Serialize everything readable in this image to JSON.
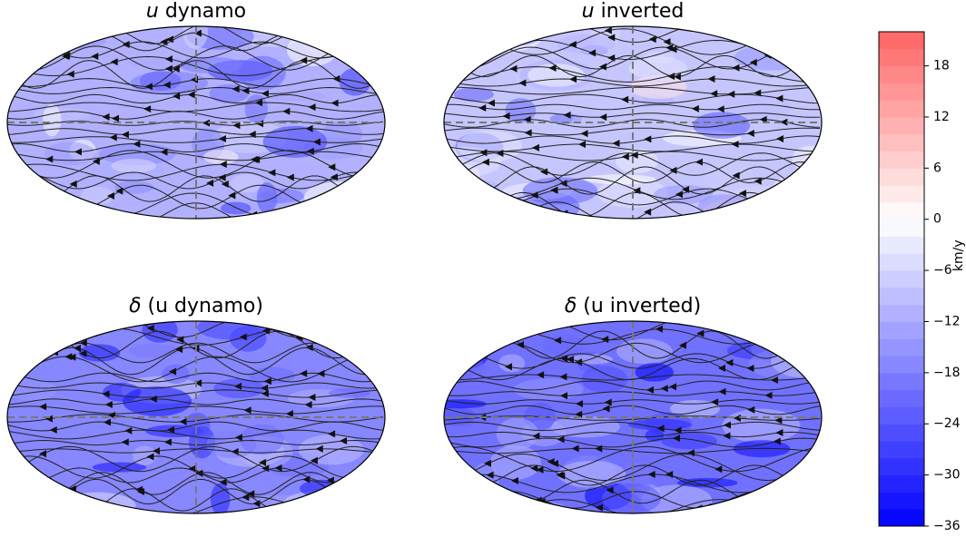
{
  "panels": [
    {
      "symbol": "u",
      "text": "dynamo"
    },
    {
      "symbol": "u",
      "text": "inverted"
    },
    {
      "symbol": "δ",
      "text": "(u dynamo)"
    },
    {
      "symbol": "δ",
      "text": "(u inverted)"
    }
  ],
  "colorbar": {
    "label": "km/y",
    "lim": [
      -36,
      22
    ],
    "ticks": [
      18,
      12,
      6,
      0,
      {
        "value": -6,
        "label": "−6"
      },
      {
        "value": -12,
        "label": "−12"
      },
      {
        "value": -18,
        "label": "−18"
      },
      {
        "value": -24,
        "label": "−24"
      },
      {
        "value": -30,
        "label": "−30"
      },
      {
        "value": -36,
        "label": "−36"
      }
    ]
  }
}
